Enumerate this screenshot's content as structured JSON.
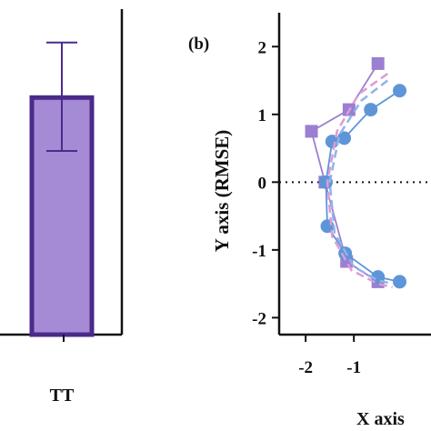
{
  "chart_data": [
    {
      "type": "bar",
      "categories": [
        "TT"
      ],
      "values": [
        1.42
      ],
      "error": [
        [
          1.1,
          1.75
        ]
      ],
      "colors": {
        "fill": "#a58ad6",
        "stroke": "#4b2a8a",
        "error": "#4b2a8a"
      }
    },
    {
      "type": "scatter",
      "panel_label": "(b)",
      "xlabel": "X axis",
      "ylabel": "Y axis (RMSE)",
      "xlim": [
        -2.55,
        0.6
      ],
      "ylim": [
        -2.25,
        2.5
      ],
      "xticks": [
        "-2",
        "-1"
      ],
      "xtick_values": [
        -2,
        -1
      ],
      "yticks": [
        "2",
        "1",
        "0",
        "-1",
        "-2"
      ],
      "ytick_values": [
        2,
        1,
        0,
        -1,
        -2
      ],
      "zero_line": "dotted",
      "series": [
        {
          "marker": "square",
          "color": "#9b7fd0",
          "x": [
            -0.5,
            -1.1,
            -1.88,
            -1.6,
            -1.15,
            -0.5
          ],
          "y": [
            1.75,
            1.07,
            0.75,
            0.0,
            -1.17,
            -1.47
          ]
        },
        {
          "marker": "circle",
          "color": "#5e95d8",
          "x": [
            -0.05,
            -0.65,
            -1.2,
            -1.45,
            -1.58,
            -1.55,
            -1.18,
            -0.5,
            -0.05
          ],
          "y": [
            1.35,
            1.07,
            0.65,
            0.6,
            0.0,
            -0.65,
            -1.05,
            -1.4,
            -1.47
          ]
        },
        {
          "marker": "none",
          "line": "dashed",
          "color": "#e09ad8",
          "x": [
            -0.3,
            -0.9,
            -1.35,
            -1.55,
            -1.45,
            -1.05,
            -0.5,
            -0.2
          ],
          "y": [
            1.6,
            1.3,
            0.75,
            0.0,
            -0.8,
            -1.3,
            -1.5,
            -1.55
          ]
        },
        {
          "marker": "none",
          "line": "dashed",
          "color": "#90b4e6",
          "x": [
            -0.3,
            -0.85,
            -1.3,
            -1.5,
            -1.4,
            -1.0,
            -0.5,
            -0.2
          ],
          "y": [
            1.5,
            1.2,
            0.7,
            0.0,
            -0.75,
            -1.25,
            -1.45,
            -1.5
          ]
        }
      ]
    }
  ]
}
